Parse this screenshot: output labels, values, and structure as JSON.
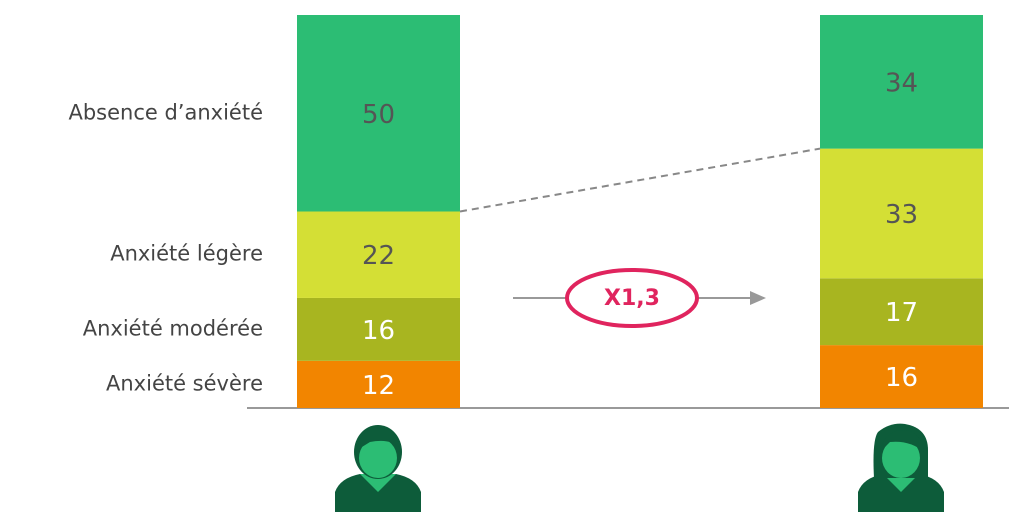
{
  "chart_data": {
    "type": "bar",
    "stacked": true,
    "categories": [
      null,
      null
    ],
    "series": [
      {
        "name": "Anxiété sévère",
        "color": "#f28500",
        "values": [
          12,
          16
        ]
      },
      {
        "name": "Anxiété modérée",
        "color": "#a8b520",
        "values": [
          16,
          17
        ]
      },
      {
        "name": "Anxiété légère",
        "color": "#d4df35",
        "values": [
          22,
          33
        ]
      },
      {
        "name": "Absence d’anxiété",
        "color": "#2cbd74",
        "values": [
          50,
          34
        ]
      }
    ],
    "ylim": [
      0,
      100
    ],
    "annotation": "X1,3"
  }
}
